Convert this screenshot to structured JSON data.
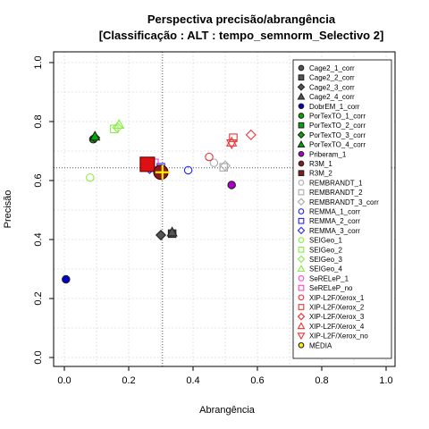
{
  "chart_data": {
    "type": "scatter",
    "title": "Perspectiva precisão/abrangência",
    "subtitle": "[Classificação : ALT : tempo_semnorm_Selectivo 2]",
    "xlabel": "Abrangência",
    "ylabel": "Precisão",
    "xlim": [
      0,
      1
    ],
    "ylim": [
      0,
      1
    ],
    "xticks": [
      "0.0",
      "0.2",
      "0.4",
      "0.6",
      "0.8",
      "1.0"
    ],
    "yticks": [
      "0.0",
      "0.2",
      "0.4",
      "0.6",
      "0.8",
      "1.0"
    ],
    "grid": true,
    "legend_position": "right",
    "reference_lines": {
      "x": 0.305,
      "y": 0.643
    },
    "series": [
      {
        "name": "Cage2_1_corr",
        "shape": "circle",
        "color": "#555555",
        "filled": true,
        "points": []
      },
      {
        "name": "Cage2_2_corr",
        "shape": "square",
        "color": "#555555",
        "filled": true,
        "points": [
          {
            "x": 0.335,
            "y": 0.42
          }
        ]
      },
      {
        "name": "Cage2_3_corr",
        "shape": "diamond",
        "color": "#555555",
        "filled": true,
        "points": [
          {
            "x": 0.3,
            "y": 0.415
          }
        ]
      },
      {
        "name": "Cage2_4_corr",
        "shape": "triangle",
        "color": "#555555",
        "filled": true,
        "points": [
          {
            "x": 0.335,
            "y": 0.425
          }
        ]
      },
      {
        "name": "DobrEM_1_corr",
        "shape": "circle",
        "color": "#0000cc",
        "filled": true,
        "points": [
          {
            "x": 0.005,
            "y": 0.265
          }
        ]
      },
      {
        "name": "PorTexTO_1_corr",
        "shape": "circle",
        "color": "#00aa00",
        "filled": true,
        "points": [
          {
            "x": 0.09,
            "y": 0.74
          }
        ]
      },
      {
        "name": "PorTexTO_2_corr",
        "shape": "square",
        "color": "#00aa00",
        "filled": true,
        "points": []
      },
      {
        "name": "PorTexTO_3_corr",
        "shape": "diamond",
        "color": "#00aa00",
        "filled": true,
        "points": [
          {
            "x": 0.095,
            "y": 0.745
          }
        ]
      },
      {
        "name": "PorTexTO_4_corr",
        "shape": "triangle",
        "color": "#00aa00",
        "filled": true,
        "points": [
          {
            "x": 0.095,
            "y": 0.75
          }
        ]
      },
      {
        "name": "Priberam_1",
        "shape": "circle",
        "color": "#aa00cc",
        "filled": true,
        "points": [
          {
            "x": 0.52,
            "y": 0.585
          }
        ]
      },
      {
        "name": "R3M_1",
        "shape": "circle",
        "color": "#8b1a1a",
        "filled": true,
        "points": []
      },
      {
        "name": "R3M_2",
        "shape": "square",
        "color": "#8b1a1a",
        "filled": true,
        "points": []
      },
      {
        "name": "REMBRANDT_1",
        "shape": "circle",
        "color": "#aaaaaa",
        "filled": false,
        "points": [
          {
            "x": 0.465,
            "y": 0.66
          }
        ]
      },
      {
        "name": "REMBRANDT_2",
        "shape": "square",
        "color": "#aaaaaa",
        "filled": false,
        "points": [
          {
            "x": 0.495,
            "y": 0.645
          }
        ]
      },
      {
        "name": "REMBRANDT_3_corr",
        "shape": "diamond",
        "color": "#aaaaaa",
        "filled": false,
        "points": [
          {
            "x": 0.5,
            "y": 0.65
          }
        ]
      },
      {
        "name": "REMMA_1_corr",
        "shape": "circle",
        "color": "#2222ff",
        "filled": false,
        "points": [
          {
            "x": 0.385,
            "y": 0.635
          }
        ]
      },
      {
        "name": "REMMA_2_corr",
        "shape": "square",
        "color": "#2222ff",
        "filled": false,
        "points": [
          {
            "x": 0.3,
            "y": 0.645
          }
        ]
      },
      {
        "name": "REMMA_3_corr",
        "shape": "diamond",
        "color": "#2222ff",
        "filled": false,
        "points": [
          {
            "x": 0.265,
            "y": 0.64
          }
        ]
      },
      {
        "name": "SEIGeo_1",
        "shape": "circle",
        "color": "#88ee44",
        "filled": false,
        "points": [
          {
            "x": 0.08,
            "y": 0.61
          }
        ]
      },
      {
        "name": "SEIGeo_2",
        "shape": "square",
        "color": "#88ee44",
        "filled": false,
        "points": [
          {
            "x": 0.155,
            "y": 0.775
          }
        ]
      },
      {
        "name": "SEIGeo_3",
        "shape": "diamond",
        "color": "#88ee44",
        "filled": false,
        "points": [
          {
            "x": 0.165,
            "y": 0.78
          }
        ]
      },
      {
        "name": "SEIGeo_4",
        "shape": "triangle",
        "color": "#88ee44",
        "filled": false,
        "points": [
          {
            "x": 0.17,
            "y": 0.79
          }
        ]
      },
      {
        "name": "SeRELeP_1",
        "shape": "circle",
        "color": "#ff44cc",
        "filled": false,
        "points": []
      },
      {
        "name": "SeRELeP_no",
        "shape": "square",
        "color": "#ff44cc",
        "filled": false,
        "points": [
          {
            "x": 0.28,
            "y": 0.66
          }
        ]
      },
      {
        "name": "XIP-L2F/Xerox_1",
        "shape": "circle",
        "color": "#ee3333",
        "filled": false,
        "points": [
          {
            "x": 0.45,
            "y": 0.68
          }
        ]
      },
      {
        "name": "XIP-L2F/Xerox_2",
        "shape": "square",
        "color": "#ee3333",
        "filled": false,
        "points": [
          {
            "x": 0.525,
            "y": 0.745
          }
        ]
      },
      {
        "name": "XIP-L2F/Xerox_3",
        "shape": "diamond",
        "color": "#ee3333",
        "filled": false,
        "points": [
          {
            "x": 0.58,
            "y": 0.755
          }
        ]
      },
      {
        "name": "XIP-L2F/Xerox_4",
        "shape": "triangle",
        "color": "#ee3333",
        "filled": false,
        "points": [
          {
            "x": 0.52,
            "y": 0.73
          }
        ]
      },
      {
        "name": "XIP-L2F/Xerox_no",
        "shape": "triangle-down",
        "color": "#ee3333",
        "filled": false,
        "points": [
          {
            "x": 0.52,
            "y": 0.725
          }
        ]
      },
      {
        "name": "MÉDIA",
        "shape": "circle",
        "color": "#ffee00",
        "filled": true,
        "points": []
      }
    ],
    "highlighted_points": [
      {
        "x": 0.258,
        "y": 0.655,
        "shape": "square",
        "fill": "#dd1111",
        "stroke": "#660000",
        "size": "large"
      },
      {
        "x": 0.3,
        "y": 0.628,
        "shape": "circle",
        "fill": "#8b1a1a",
        "stroke": "#330000",
        "size": "large"
      },
      {
        "x": 0.305,
        "y": 0.628,
        "shape": "plus",
        "fill": "#ffee00",
        "stroke": "#ffee00",
        "size": "large"
      }
    ]
  }
}
